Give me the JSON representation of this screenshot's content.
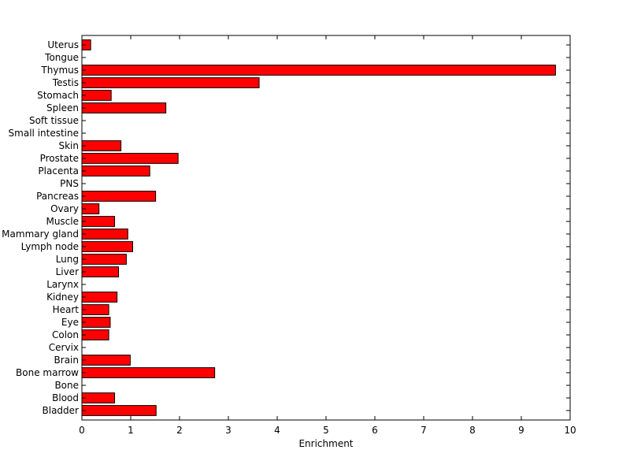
{
  "chart_data": {
    "type": "bar",
    "orientation": "horizontal",
    "title": "",
    "xlabel": "Enrichment",
    "ylabel": "",
    "xlim": [
      0,
      10
    ],
    "xticks": [
      "0",
      "1",
      "2",
      "3",
      "4",
      "5",
      "6",
      "7",
      "8",
      "9",
      "10"
    ],
    "grid": false,
    "legend": "none",
    "bar_color": "#ff0000",
    "categories": [
      "Uterus",
      "Tongue",
      "Thymus",
      "Testis",
      "Stomach",
      "Spleen",
      "Soft tissue",
      "Small intestine",
      "Skin",
      "Prostate",
      "Placenta",
      "PNS",
      "Pancreas",
      "Ovary",
      "Muscle",
      "Mammary gland",
      "Lymph node",
      "Lung",
      "Liver",
      "Larynx",
      "Kidney",
      "Heart",
      "Eye",
      "Colon",
      "Cervix",
      "Brain",
      "Bone marrow",
      "Bone",
      "Blood",
      "Bladder"
    ],
    "values": [
      0.18,
      0,
      9.7,
      3.63,
      0.6,
      1.72,
      0,
      0,
      0.8,
      1.97,
      1.39,
      0,
      1.51,
      0.35,
      0.67,
      0.94,
      1.04,
      0.91,
      0.75,
      0,
      0.72,
      0.55,
      0.58,
      0.55,
      0,
      0.99,
      2.72,
      0,
      0.67,
      1.52
    ]
  }
}
